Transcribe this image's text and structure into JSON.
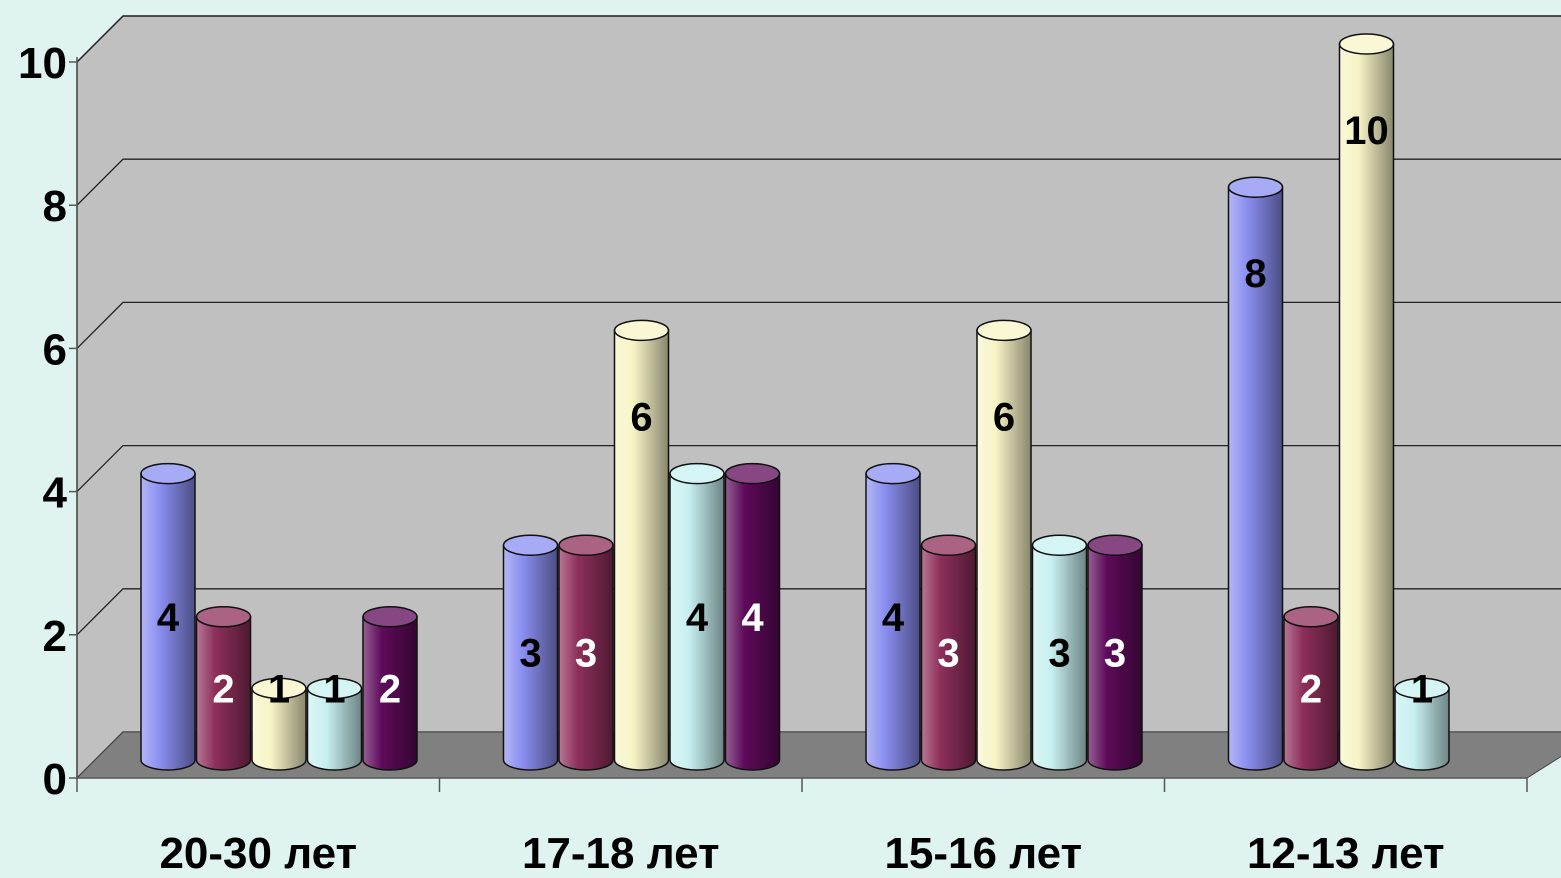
{
  "chart_data": {
    "type": "bar",
    "style": "3d-cylinder",
    "categories": [
      "20-30 лет",
      "17-18 лет",
      "15-16 лет",
      "12-13 лет"
    ],
    "series": [
      {
        "values": [
          4,
          3,
          4,
          8
        ],
        "color": "#8a8ef0",
        "label_color": "#000000"
      },
      {
        "values": [
          2,
          3,
          3,
          2
        ],
        "color": "#8e2f5a",
        "label_color": "#ffffff"
      },
      {
        "values": [
          1,
          6,
          6,
          10
        ],
        "color": "#f7f4c6",
        "label_color": "#000000"
      },
      {
        "values": [
          1,
          4,
          3,
          1
        ],
        "color": "#c7f0f0",
        "label_color": "#000000"
      },
      {
        "values": [
          2,
          4,
          3,
          null
        ],
        "color": "#5e0a5a",
        "label_color": "#ffffff"
      }
    ],
    "yticks": [
      "0",
      "2",
      "4",
      "6",
      "8",
      "10"
    ],
    "ylim": [
      0,
      10
    ],
    "grid": true,
    "colors": {
      "wall": "#c0c0c0",
      "floor": "#808080",
      "background": "#dff3f1"
    }
  }
}
